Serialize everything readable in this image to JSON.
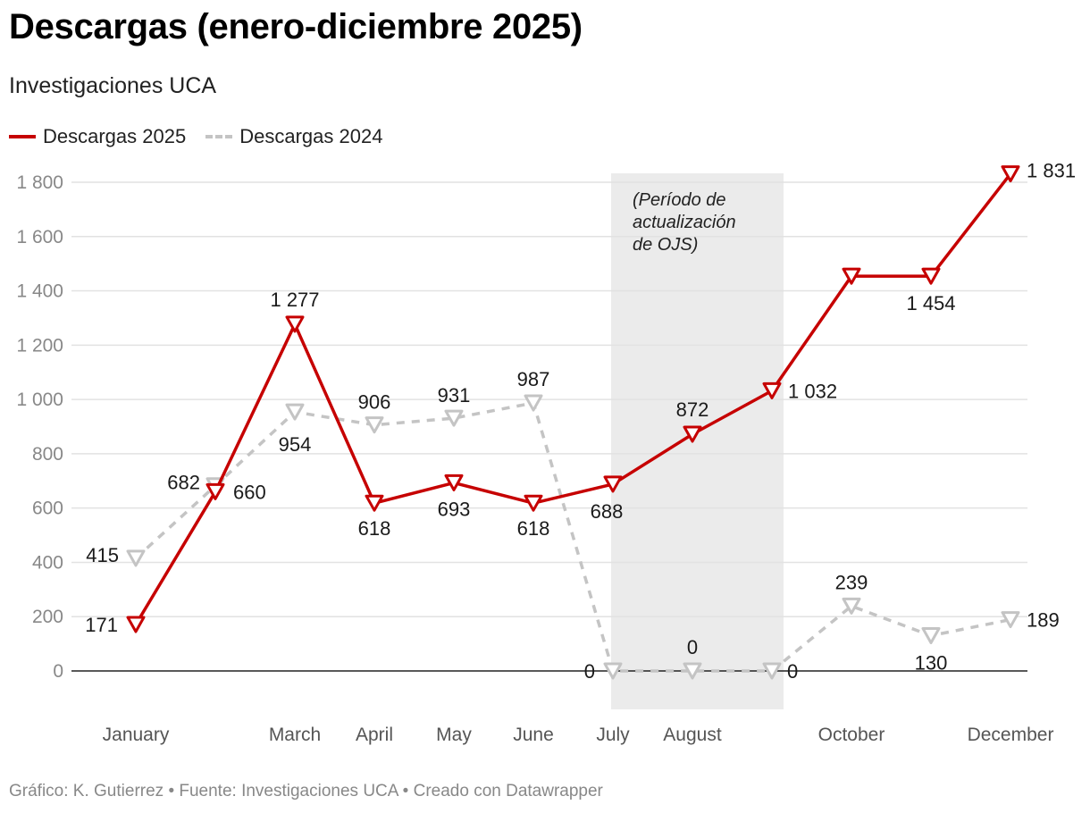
{
  "title": "Descargas (enero-diciembre 2025)",
  "subtitle": "Investigaciones UCA",
  "footer": "Gráfico: K. Gutierrez • Fuente: Investigaciones UCA • Creado con Datawrapper",
  "colors": {
    "series_2025": "#c60000",
    "series_2024": "#c4c4c4",
    "highlight": "#ebebeb",
    "grid": "#e2e2e2",
    "axis_text": "#888888"
  },
  "chart_data": {
    "type": "line",
    "title": "Descargas (enero-diciembre 2025)",
    "xlabel": "",
    "ylabel": "",
    "ylim": [
      0,
      1800
    ],
    "yticks": [
      0,
      200,
      400,
      600,
      800,
      1000,
      1200,
      1400,
      1600,
      1800
    ],
    "ytick_labels": [
      "0",
      "200",
      "400",
      "600",
      "800",
      "1 000",
      "1 200",
      "1 400",
      "1 600",
      "1 800"
    ],
    "x_tick_labels": [
      "January",
      "",
      "March",
      "April",
      "May",
      "June",
      "July",
      "August",
      "",
      "October",
      "",
      "December"
    ],
    "series": [
      {
        "name": "Descargas 2025",
        "style": "solid",
        "values": [
          171,
          660,
          1277,
          618,
          693,
          618,
          688,
          872,
          1032,
          1454,
          1454,
          1831
        ],
        "labels": [
          "171",
          "660",
          "1 277",
          "618",
          "693",
          "618",
          "688",
          "872",
          "1 032",
          "",
          "1 454",
          "1 831"
        ]
      },
      {
        "name": "Descargas 2024",
        "style": "dashed",
        "values": [
          415,
          682,
          954,
          906,
          931,
          987,
          0,
          0,
          0,
          239,
          130,
          189
        ],
        "labels": [
          "415",
          "682",
          "954",
          "906",
          "931",
          "987",
          "0",
          "0",
          "0",
          "239",
          "130",
          "189"
        ]
      }
    ],
    "highlight": {
      "from_index": 6,
      "to_index": 8,
      "annotation": [
        "(Período de",
        "actualización",
        "de OJS)"
      ]
    }
  }
}
